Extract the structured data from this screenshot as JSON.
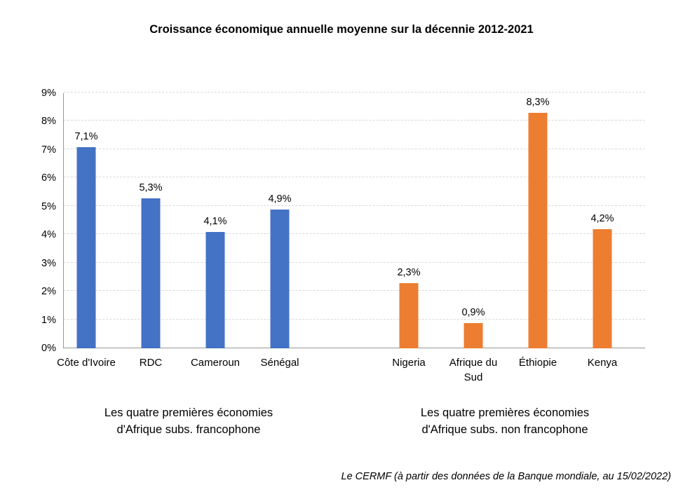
{
  "title": "Croissance économique annuelle moyenne sur la décennie 2012-2021",
  "source_note": "Le CERMF (à partir des données de la Banque mondiale, au 15/02/2022)",
  "colors": {
    "francophone_bar": "#4472C4",
    "non_francophone_bar": "#ED7D31",
    "axis": "#969696",
    "gridline": "#d9d9d9",
    "text": "#000000",
    "background": "#ffffff"
  },
  "chart_data": {
    "type": "bar",
    "title": "Croissance économique annuelle moyenne sur la décennie 2012-2021",
    "xlabel": "",
    "ylabel": "",
    "ylim": [
      0,
      9
    ],
    "yticks": [
      "0%",
      "1%",
      "2%",
      "3%",
      "4%",
      "5%",
      "6%",
      "7%",
      "8%",
      "9%"
    ],
    "grid": true,
    "legend": "none",
    "groups": [
      {
        "id": "francophone",
        "caption": "Les quatre premières économies\nd'Afrique subs.  francophone",
        "color": "#4472C4",
        "bars": [
          {
            "category": "Côte d'Ivoire",
            "value": 7.1,
            "label": "7,1%"
          },
          {
            "category": "RDC",
            "value": 5.3,
            "label": "5,3%"
          },
          {
            "category": "Cameroun",
            "value": 4.1,
            "label": "4,1%"
          },
          {
            "category": "Sénégal",
            "value": 4.9,
            "label": "4,9%"
          }
        ]
      },
      {
        "id": "non_francophone",
        "caption": "Les quatre premières économies\nd'Afrique subs.  non francophone",
        "color": "#ED7D31",
        "bars": [
          {
            "category": "Nigeria",
            "value": 2.3,
            "label": "2,3%"
          },
          {
            "category": "Afrique du Sud",
            "value": 0.9,
            "label": "0,9%"
          },
          {
            "category": "Éthiopie",
            "value": 8.3,
            "label": "8,3%"
          },
          {
            "category": "Kenya",
            "value": 4.2,
            "label": "4,2%"
          }
        ]
      }
    ]
  }
}
